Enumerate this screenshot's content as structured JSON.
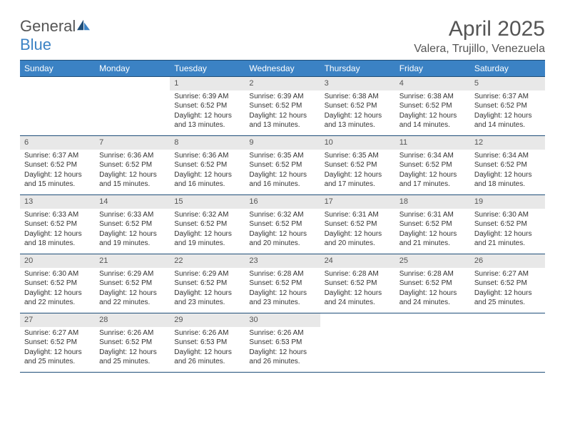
{
  "logo": {
    "text1": "General",
    "text2": "Blue"
  },
  "title": "April 2025",
  "location": "Valera, Trujillo, Venezuela",
  "colors": {
    "header_bg": "#3b82c4",
    "header_border": "#1f4e79",
    "daynum_bg": "#e8e8e8",
    "text_muted": "#555555",
    "text_body": "#333333",
    "page_bg": "#ffffff"
  },
  "weekdays": [
    "Sunday",
    "Monday",
    "Tuesday",
    "Wednesday",
    "Thursday",
    "Friday",
    "Saturday"
  ],
  "weeks": [
    [
      null,
      null,
      {
        "d": "1",
        "sr": "6:39 AM",
        "ss": "6:52 PM",
        "dl": "12 hours and 13 minutes."
      },
      {
        "d": "2",
        "sr": "6:39 AM",
        "ss": "6:52 PM",
        "dl": "12 hours and 13 minutes."
      },
      {
        "d": "3",
        "sr": "6:38 AM",
        "ss": "6:52 PM",
        "dl": "12 hours and 13 minutes."
      },
      {
        "d": "4",
        "sr": "6:38 AM",
        "ss": "6:52 PM",
        "dl": "12 hours and 14 minutes."
      },
      {
        "d": "5",
        "sr": "6:37 AM",
        "ss": "6:52 PM",
        "dl": "12 hours and 14 minutes."
      }
    ],
    [
      {
        "d": "6",
        "sr": "6:37 AM",
        "ss": "6:52 PM",
        "dl": "12 hours and 15 minutes."
      },
      {
        "d": "7",
        "sr": "6:36 AM",
        "ss": "6:52 PM",
        "dl": "12 hours and 15 minutes."
      },
      {
        "d": "8",
        "sr": "6:36 AM",
        "ss": "6:52 PM",
        "dl": "12 hours and 16 minutes."
      },
      {
        "d": "9",
        "sr": "6:35 AM",
        "ss": "6:52 PM",
        "dl": "12 hours and 16 minutes."
      },
      {
        "d": "10",
        "sr": "6:35 AM",
        "ss": "6:52 PM",
        "dl": "12 hours and 17 minutes."
      },
      {
        "d": "11",
        "sr": "6:34 AM",
        "ss": "6:52 PM",
        "dl": "12 hours and 17 minutes."
      },
      {
        "d": "12",
        "sr": "6:34 AM",
        "ss": "6:52 PM",
        "dl": "12 hours and 18 minutes."
      }
    ],
    [
      {
        "d": "13",
        "sr": "6:33 AM",
        "ss": "6:52 PM",
        "dl": "12 hours and 18 minutes."
      },
      {
        "d": "14",
        "sr": "6:33 AM",
        "ss": "6:52 PM",
        "dl": "12 hours and 19 minutes."
      },
      {
        "d": "15",
        "sr": "6:32 AM",
        "ss": "6:52 PM",
        "dl": "12 hours and 19 minutes."
      },
      {
        "d": "16",
        "sr": "6:32 AM",
        "ss": "6:52 PM",
        "dl": "12 hours and 20 minutes."
      },
      {
        "d": "17",
        "sr": "6:31 AM",
        "ss": "6:52 PM",
        "dl": "12 hours and 20 minutes."
      },
      {
        "d": "18",
        "sr": "6:31 AM",
        "ss": "6:52 PM",
        "dl": "12 hours and 21 minutes."
      },
      {
        "d": "19",
        "sr": "6:30 AM",
        "ss": "6:52 PM",
        "dl": "12 hours and 21 minutes."
      }
    ],
    [
      {
        "d": "20",
        "sr": "6:30 AM",
        "ss": "6:52 PM",
        "dl": "12 hours and 22 minutes."
      },
      {
        "d": "21",
        "sr": "6:29 AM",
        "ss": "6:52 PM",
        "dl": "12 hours and 22 minutes."
      },
      {
        "d": "22",
        "sr": "6:29 AM",
        "ss": "6:52 PM",
        "dl": "12 hours and 23 minutes."
      },
      {
        "d": "23",
        "sr": "6:28 AM",
        "ss": "6:52 PM",
        "dl": "12 hours and 23 minutes."
      },
      {
        "d": "24",
        "sr": "6:28 AM",
        "ss": "6:52 PM",
        "dl": "12 hours and 24 minutes."
      },
      {
        "d": "25",
        "sr": "6:28 AM",
        "ss": "6:52 PM",
        "dl": "12 hours and 24 minutes."
      },
      {
        "d": "26",
        "sr": "6:27 AM",
        "ss": "6:52 PM",
        "dl": "12 hours and 25 minutes."
      }
    ],
    [
      {
        "d": "27",
        "sr": "6:27 AM",
        "ss": "6:52 PM",
        "dl": "12 hours and 25 minutes."
      },
      {
        "d": "28",
        "sr": "6:26 AM",
        "ss": "6:52 PM",
        "dl": "12 hours and 25 minutes."
      },
      {
        "d": "29",
        "sr": "6:26 AM",
        "ss": "6:53 PM",
        "dl": "12 hours and 26 minutes."
      },
      {
        "d": "30",
        "sr": "6:26 AM",
        "ss": "6:53 PM",
        "dl": "12 hours and 26 minutes."
      },
      null,
      null,
      null
    ]
  ],
  "labels": {
    "sunrise": "Sunrise: ",
    "sunset": "Sunset: ",
    "daylight": "Daylight: "
  }
}
